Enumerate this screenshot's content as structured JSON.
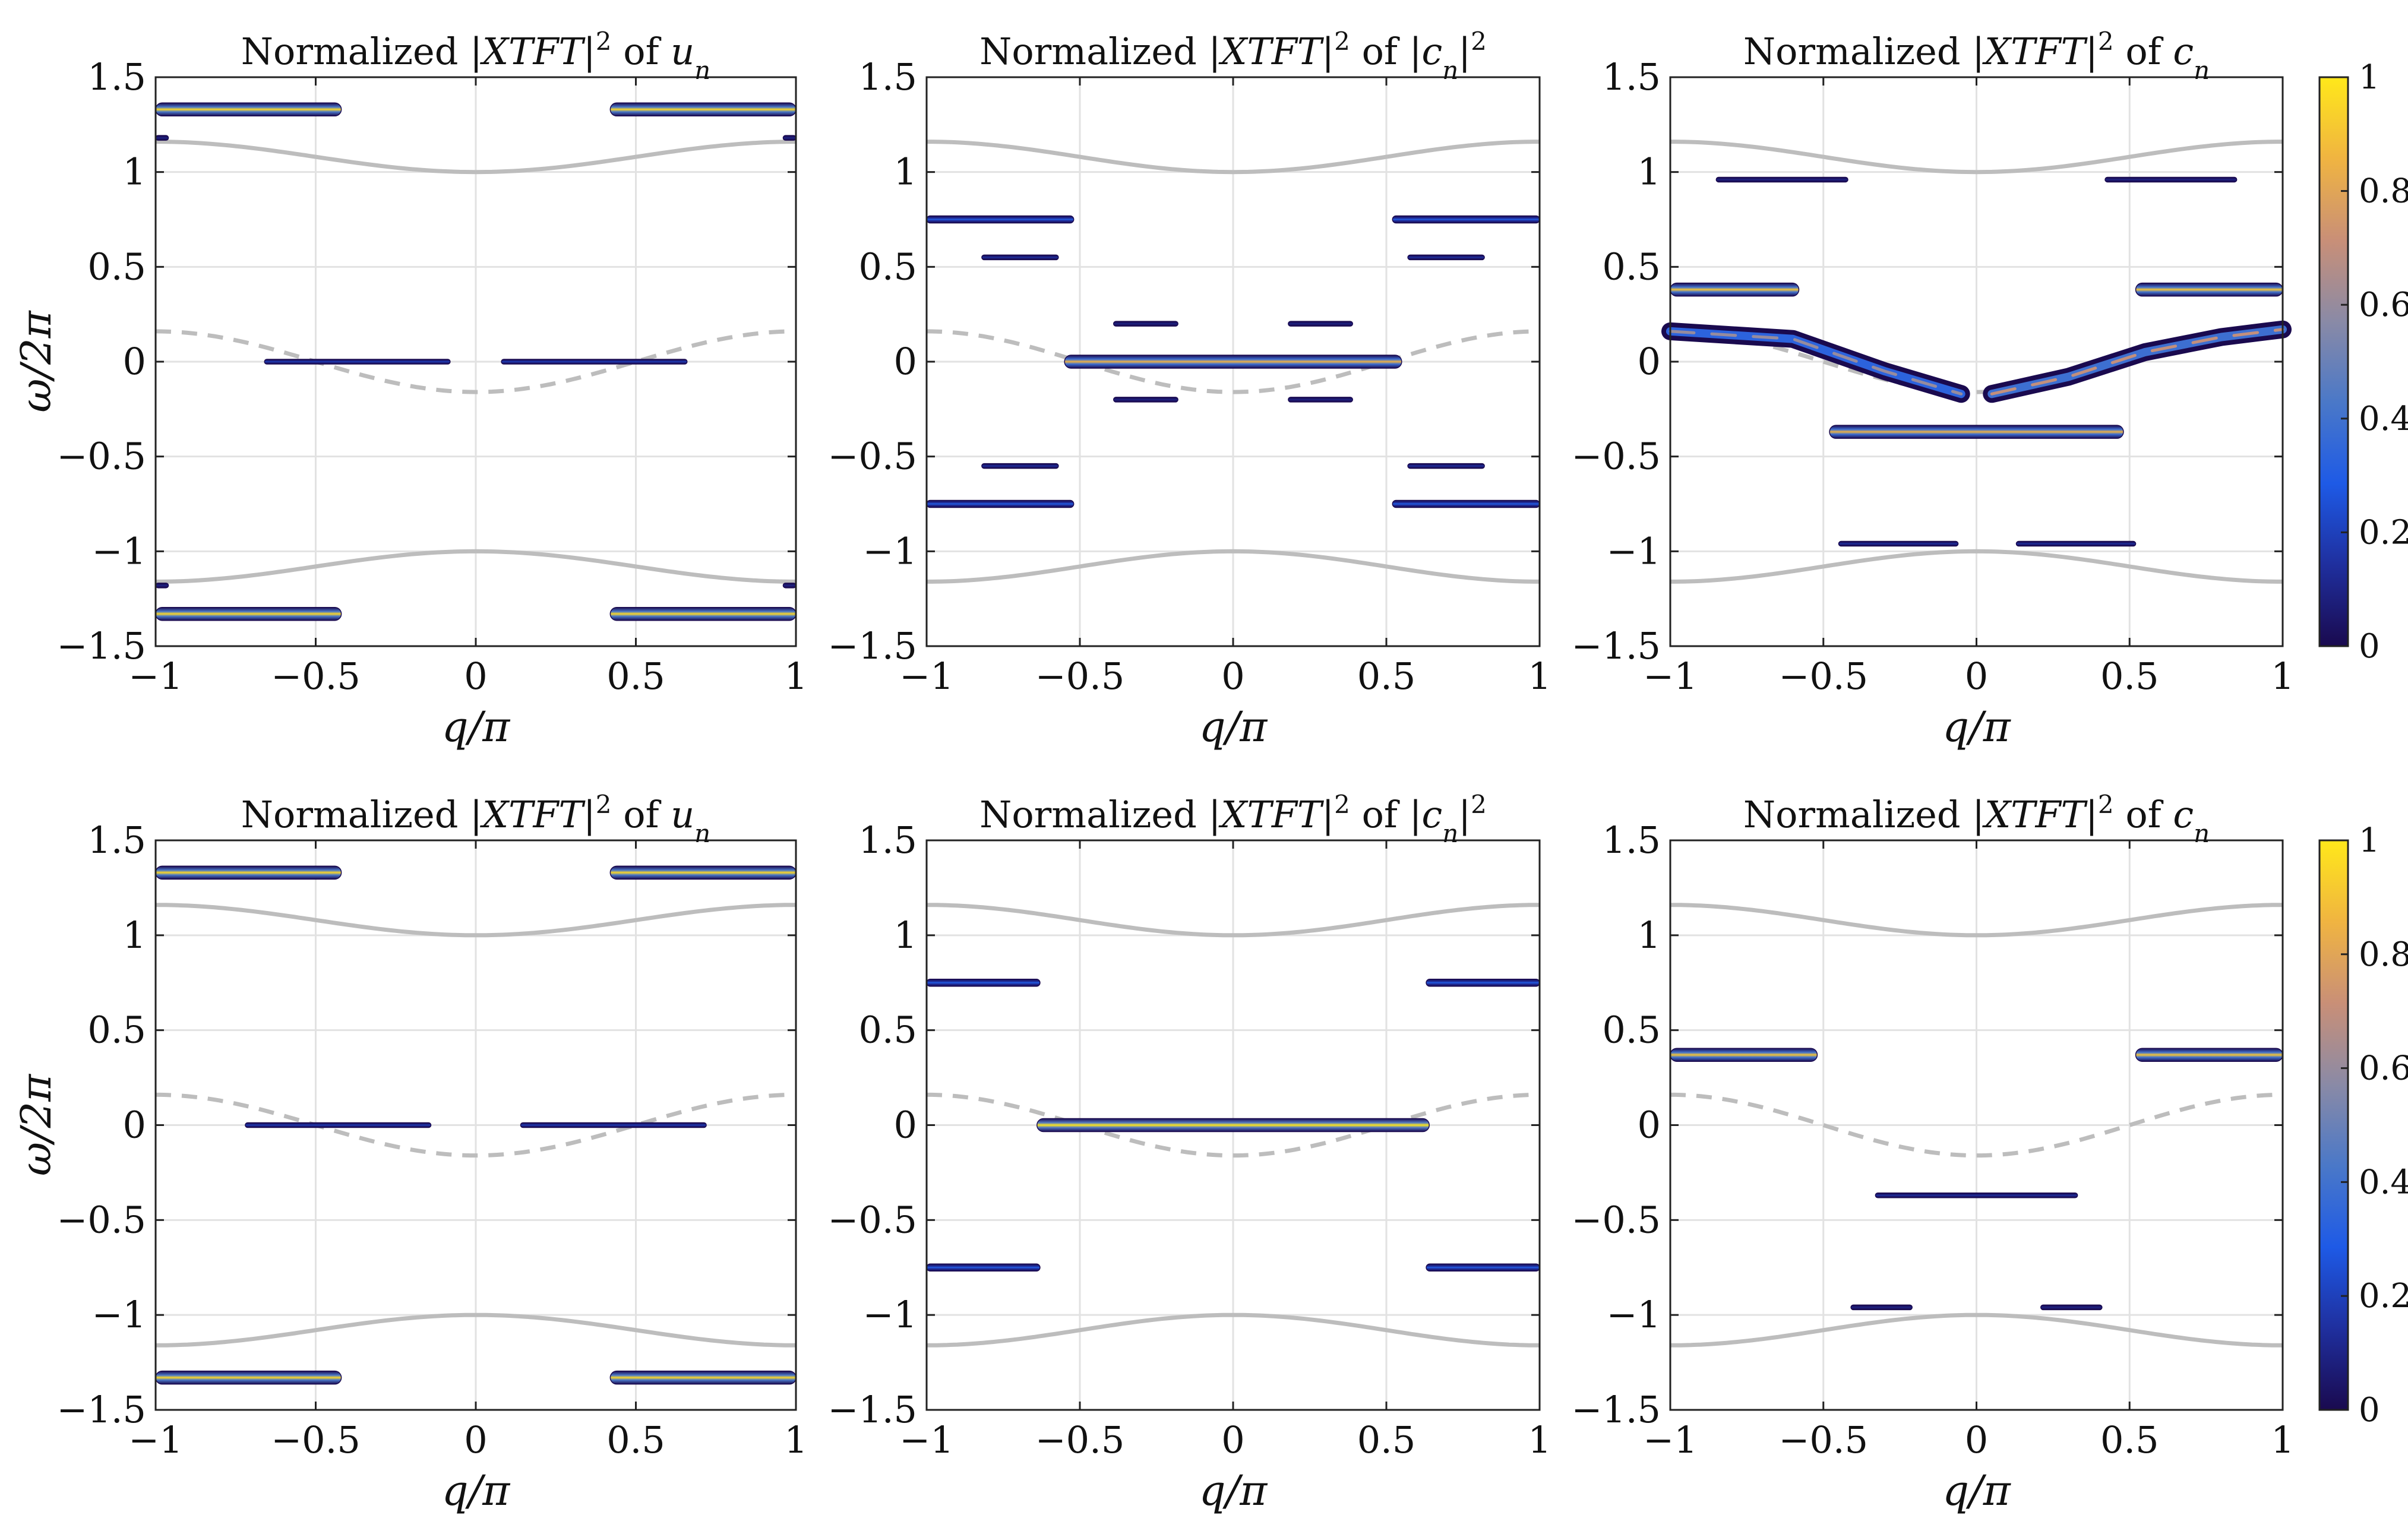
{
  "figure": {
    "panel_titles": [
      {
        "text": "Normalized |XTFT|² of uₙ",
        "pre": "Normalized |",
        "math": "XTFT",
        "post": "|",
        "sup": "2",
        "of": " of ",
        "var": "u",
        "sub": "n"
      },
      {
        "text": "Normalized |XTFT|² of |cₙ|²",
        "pre": "Normalized |",
        "math": "XTFT",
        "post": "|",
        "sup": "2",
        "of": " of |",
        "var": "c",
        "sub": "n",
        "tail": "|",
        "tailsup": "2"
      },
      {
        "text": "Normalized |XTFT|² of cₙ",
        "pre": "Normalized |",
        "math": "XTFT",
        "post": "|",
        "sup": "2",
        "of": " of ",
        "var": "c",
        "sub": "n"
      }
    ],
    "xlabel": "q/π",
    "ylabel": "ω/2π",
    "colormap": [
      "#1a0a4f",
      "#1f2f9e",
      "#1e5ae6",
      "#4a78c8",
      "#8a8aa6",
      "#c98f77",
      "#f0b441",
      "#ffe81a"
    ],
    "band_color": "#bdbdbd",
    "grid_color": "#e2e2e2"
  },
  "chart_data": [
    {
      "type": "heatmap",
      "row": 1,
      "col": 1,
      "title_ref": 0,
      "xlim": [
        -1,
        1
      ],
      "ylim": [
        -1.5,
        1.5
      ],
      "xticks": [
        "−1",
        "−0.5",
        "0",
        "0.5",
        "1"
      ],
      "yticks": [
        "−1.5",
        "−1",
        "−0.5",
        "0",
        "0.5",
        "1",
        "1.5"
      ],
      "grid": true,
      "dispersion": {
        "optical": "±(1.08 − 0.08cos q)",
        "acoustic": "−0.16cos q (dashed)"
      },
      "features": [
        {
          "q": [
            -1,
            -0.42
          ],
          "w": 1.33,
          "peak": 0.95
        },
        {
          "q": [
            0.42,
            1
          ],
          "w": 1.33,
          "peak": 0.95
        },
        {
          "q": [
            -1,
            -0.42
          ],
          "w": -1.33,
          "peak": 0.95
        },
        {
          "q": [
            0.42,
            1
          ],
          "w": -1.33,
          "peak": 0.95
        },
        {
          "q": [
            -0.66,
            -0.08
          ],
          "w": 0.0,
          "peak": 0.2
        },
        {
          "q": [
            0.08,
            0.66
          ],
          "w": 0.0,
          "peak": 0.2
        },
        {
          "q": [
            -1,
            -0.96
          ],
          "w": 1.18,
          "peak": 0.1
        },
        {
          "q": [
            0.96,
            1
          ],
          "w": 1.18,
          "peak": 0.1
        },
        {
          "q": [
            -1,
            -0.96
          ],
          "w": -1.18,
          "peak": 0.1
        },
        {
          "q": [
            0.96,
            1
          ],
          "w": -1.18,
          "peak": 0.1
        }
      ]
    },
    {
      "type": "heatmap",
      "row": 1,
      "col": 2,
      "title_ref": 1,
      "xlim": [
        -1,
        1
      ],
      "ylim": [
        -1.5,
        1.5
      ],
      "xticks": [
        "−1",
        "−0.5",
        "0",
        "0.5",
        "1"
      ],
      "yticks": [
        "−1.5",
        "−1",
        "−0.5",
        "0",
        "0.5",
        "1",
        "1.5"
      ],
      "grid": true,
      "features": [
        {
          "q": [
            -1,
            -0.52
          ],
          "w": 0.75,
          "peak": 0.3
        },
        {
          "q": [
            0.52,
            1
          ],
          "w": 0.75,
          "peak": 0.3
        },
        {
          "q": [
            -1,
            -0.52
          ],
          "w": -0.75,
          "peak": 0.3
        },
        {
          "q": [
            0.52,
            1
          ],
          "w": -0.75,
          "peak": 0.3
        },
        {
          "q": [
            -0.82,
            -0.57
          ],
          "w": 0.55,
          "peak": 0.15
        },
        {
          "q": [
            0.57,
            0.82
          ],
          "w": 0.55,
          "peak": 0.15
        },
        {
          "q": [
            -0.82,
            -0.57
          ],
          "w": -0.55,
          "peak": 0.15
        },
        {
          "q": [
            0.57,
            0.82
          ],
          "w": -0.55,
          "peak": 0.15
        },
        {
          "q": [
            -0.39,
            -0.18
          ],
          "w": 0.2,
          "peak": 0.1
        },
        {
          "q": [
            0.18,
            0.39
          ],
          "w": 0.2,
          "peak": 0.1
        },
        {
          "q": [
            -0.39,
            -0.18
          ],
          "w": -0.2,
          "peak": 0.1
        },
        {
          "q": [
            0.18,
            0.39
          ],
          "w": -0.2,
          "peak": 0.1
        },
        {
          "q": [
            -0.55,
            0.55
          ],
          "w": 0.0,
          "peak": 0.85
        }
      ]
    },
    {
      "type": "heatmap",
      "row": 1,
      "col": 3,
      "title_ref": 2,
      "xlim": [
        -1,
        1
      ],
      "ylim": [
        -1.5,
        1.5
      ],
      "xticks": [
        "−1",
        "−0.5",
        "0",
        "0.5",
        "1"
      ],
      "yticks": [
        "−1.5",
        "−1",
        "−0.5",
        "0",
        "0.5",
        "1",
        "1.5"
      ],
      "grid": true,
      "colorbar": {
        "ticks": [
          "0",
          "0.2",
          "0.4",
          "0.6",
          "0.8",
          "1"
        ]
      },
      "features": [
        {
          "q": [
            -0.85,
            -0.42
          ],
          "w": 0.96,
          "peak": 0.1
        },
        {
          "q": [
            0.42,
            0.85
          ],
          "w": 0.96,
          "peak": 0.1
        },
        {
          "q": [
            -1,
            -0.58
          ],
          "w": 0.38,
          "peak": 0.9
        },
        {
          "q": [
            0.52,
            1
          ],
          "w": 0.38,
          "peak": 0.9
        },
        {
          "q": [
            -0.48,
            0.48
          ],
          "w": -0.37,
          "peak": 0.85
        },
        {
          "q": [
            -0.45,
            -0.06
          ],
          "w": -0.96,
          "peak": 0.15
        },
        {
          "q": [
            0.13,
            0.52
          ],
          "w": -0.96,
          "peak": 0.15
        },
        {
          "path": [
            [
              -1,
              0.16
            ],
            [
              -0.6,
              0.12
            ],
            [
              -0.3,
              -0.05
            ],
            [
              -0.05,
              -0.17
            ]
          ],
          "peak": 0.6
        },
        {
          "path": [
            [
              0.05,
              -0.17
            ],
            [
              0.3,
              -0.08
            ],
            [
              0.55,
              0.05
            ],
            [
              0.8,
              0.13
            ],
            [
              1,
              0.17
            ]
          ],
          "peak": 0.7
        }
      ]
    },
    {
      "type": "heatmap",
      "row": 2,
      "col": 1,
      "title_ref": 0,
      "xlim": [
        -1,
        1
      ],
      "ylim": [
        -1.5,
        1.5
      ],
      "xticks": [
        "−1",
        "−0.5",
        "0",
        "0.5",
        "1"
      ],
      "yticks": [
        "−1.5",
        "−1",
        "−0.5",
        "0",
        "0.5",
        "1",
        "1.5"
      ],
      "grid": true,
      "features": [
        {
          "q": [
            -1,
            -0.42
          ],
          "w": 1.33,
          "peak": 0.95
        },
        {
          "q": [
            0.42,
            1
          ],
          "w": 1.33,
          "peak": 0.95
        },
        {
          "q": [
            -1,
            -0.42
          ],
          "w": -1.33,
          "peak": 0.95
        },
        {
          "q": [
            0.42,
            1
          ],
          "w": -1.33,
          "peak": 0.95
        },
        {
          "q": [
            -0.72,
            -0.14
          ],
          "w": 0.0,
          "peak": 0.2
        },
        {
          "q": [
            0.14,
            0.72
          ],
          "w": 0.0,
          "peak": 0.2
        }
      ]
    },
    {
      "type": "heatmap",
      "row": 2,
      "col": 2,
      "title_ref": 1,
      "xlim": [
        -1,
        1
      ],
      "ylim": [
        -1.5,
        1.5
      ],
      "xticks": [
        "−1",
        "−0.5",
        "0",
        "0.5",
        "1"
      ],
      "yticks": [
        "−1.5",
        "−1",
        "−0.5",
        "0",
        "0.5",
        "1",
        "1.5"
      ],
      "grid": true,
      "features": [
        {
          "q": [
            -1,
            -0.63
          ],
          "w": 0.75,
          "peak": 0.3
        },
        {
          "q": [
            0.63,
            1
          ],
          "w": 0.75,
          "peak": 0.3
        },
        {
          "q": [
            -1,
            -0.63
          ],
          "w": -0.75,
          "peak": 0.3
        },
        {
          "q": [
            0.63,
            1
          ],
          "w": -0.75,
          "peak": 0.3
        },
        {
          "q": [
            -0.64,
            0.64
          ],
          "w": 0.0,
          "peak": 1.0
        }
      ]
    },
    {
      "type": "heatmap",
      "row": 2,
      "col": 3,
      "title_ref": 2,
      "xlim": [
        -1,
        1
      ],
      "ylim": [
        -1.5,
        1.5
      ],
      "xticks": [
        "−1",
        "−0.5",
        "0",
        "0.5",
        "1"
      ],
      "yticks": [
        "−1.5",
        "−1",
        "−0.5",
        "0",
        "0.5",
        "1",
        "1.5"
      ],
      "grid": true,
      "colorbar": {
        "ticks": [
          "0",
          "0.2",
          "0.4",
          "0.6",
          "0.8",
          "1"
        ]
      },
      "features": [
        {
          "q": [
            -1,
            -0.52
          ],
          "w": 0.37,
          "peak": 0.9
        },
        {
          "q": [
            0.52,
            1
          ],
          "w": 0.37,
          "peak": 0.9
        },
        {
          "q": [
            -0.33,
            0.33
          ],
          "w": -0.37,
          "peak": 0.15
        },
        {
          "q": [
            -0.41,
            -0.21
          ],
          "w": -0.96,
          "peak": 0.1
        },
        {
          "q": [
            0.21,
            0.41
          ],
          "w": -0.96,
          "peak": 0.1
        }
      ]
    }
  ]
}
